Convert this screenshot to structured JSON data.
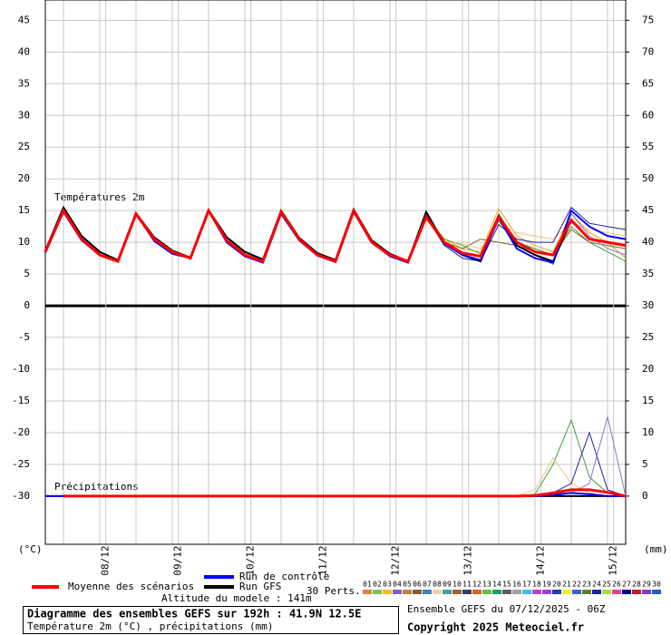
{
  "chart_data": {
    "type": "line",
    "temperature_label": "Températures 2m",
    "precip_label": "Précipitations",
    "y_unit": "(°C)",
    "y2_unit": "(mm)",
    "xlim": [
      0,
      192
    ],
    "xticks": [
      {
        "value": 20,
        "label": "08/12"
      },
      {
        "value": 44,
        "label": "09/12"
      },
      {
        "value": 68,
        "label": "10/12"
      },
      {
        "value": 92,
        "label": "11/12"
      },
      {
        "value": 116,
        "label": "12/12"
      },
      {
        "value": 140,
        "label": "13/12"
      },
      {
        "value": 164,
        "label": "14/12"
      },
      {
        "value": 188,
        "label": "15/12"
      }
    ],
    "ylim": [
      -37.6,
      48.2
    ],
    "yticks": [
      -30,
      -25,
      -20,
      -15,
      -10,
      -5,
      0,
      5,
      10,
      15,
      20,
      25,
      30,
      35,
      40,
      45
    ],
    "y2lim": [
      -7.6,
      78.2
    ],
    "y2ticks": [
      0,
      5,
      10,
      15,
      20,
      25,
      30,
      35,
      40,
      45,
      50,
      55,
      60,
      65,
      70,
      75
    ],
    "grid": true,
    "x": [
      0,
      6,
      12,
      18,
      24,
      30,
      36,
      42,
      48,
      54,
      60,
      66,
      72,
      78,
      84,
      90,
      96,
      102,
      108,
      114,
      120,
      126,
      132,
      138,
      144,
      150,
      156,
      162,
      168,
      174,
      180,
      186,
      192
    ],
    "series": [
      {
        "color": "#f0a020",
        "values": [
          8.5,
          15,
          10.5,
          8,
          7,
          14.5,
          10.5,
          8.5,
          7.5,
          15,
          10.3,
          8,
          7,
          14.8,
          10.5,
          8,
          7,
          15,
          10,
          8,
          7,
          14.2,
          10.5,
          9,
          8.5,
          15.3,
          11,
          9.5,
          8.5,
          14.5,
          11.5,
          10,
          7.5
        ],
        "precip": [
          0,
          0,
          0,
          0,
          0,
          0,
          0,
          0,
          0,
          0,
          0,
          0,
          0,
          0,
          0,
          0,
          0,
          0,
          0,
          0,
          0,
          0,
          0,
          0,
          0,
          0,
          0,
          0,
          0,
          0,
          0,
          0,
          0
        ]
      },
      {
        "color": "#40a040",
        "values": [
          8.5,
          15,
          10.5,
          8,
          7,
          14.5,
          10.5,
          8.5,
          7.5,
          15,
          10.3,
          8,
          7,
          14.8,
          10.5,
          8,
          7,
          15,
          10,
          8,
          7,
          14,
          10.5,
          9.5,
          8.2,
          14.5,
          10,
          9,
          8,
          12.5,
          10,
          8.5,
          7
        ],
        "precip": [
          0,
          0,
          0,
          0,
          0,
          0,
          0,
          0,
          0,
          0,
          0,
          0,
          0,
          0,
          0,
          0,
          0,
          0,
          0,
          0,
          0,
          0,
          0,
          0,
          0,
          0,
          0,
          0.3,
          5,
          12,
          3,
          0.5,
          0
        ]
      },
      {
        "color": "#806030",
        "values": [
          8.5,
          15,
          10.5,
          8,
          7,
          14.5,
          10.5,
          8.5,
          7.5,
          15,
          10.3,
          8,
          7,
          14.8,
          10.5,
          8,
          7,
          15,
          10,
          8,
          7,
          13.8,
          10,
          9,
          10.5,
          10,
          9.5,
          8.5,
          8,
          12,
          10,
          9.5,
          9
        ],
        "precip": [
          0,
          0,
          0,
          0,
          0,
          0,
          0,
          0,
          0,
          0,
          0,
          0,
          0,
          0,
          0,
          0,
          0,
          0,
          0,
          0,
          0,
          0,
          0,
          0,
          0,
          0,
          0,
          0,
          0,
          0,
          0,
          0,
          0
        ]
      },
      {
        "color": "#f0c080",
        "values": [
          8.5,
          15,
          10.5,
          8,
          7,
          14.5,
          10.5,
          8.5,
          7.5,
          15,
          10.3,
          8,
          7,
          14.8,
          10.5,
          8,
          7,
          15,
          10,
          8,
          7,
          14,
          10,
          9.8,
          9,
          13,
          11.5,
          11,
          10.5,
          13,
          12,
          11.5,
          11
        ],
        "precip": [
          0,
          0,
          0,
          0,
          0,
          0,
          0,
          0,
          0,
          0,
          0,
          0,
          0,
          0,
          0,
          0,
          0,
          0,
          0,
          0,
          0,
          0,
          0,
          0,
          0,
          0,
          0,
          1,
          6,
          2,
          0.5,
          0,
          0
        ]
      },
      {
        "color": "#2020a0",
        "values": [
          8.5,
          15,
          10.5,
          8,
          7,
          14.5,
          10.5,
          8.5,
          7.5,
          15,
          10.3,
          8,
          7,
          14.8,
          10.5,
          8,
          7,
          15,
          10,
          8,
          7,
          14,
          9.5,
          7.5,
          7,
          12.8,
          10.5,
          10,
          10,
          15.5,
          13,
          12.5,
          12
        ],
        "precip": [
          0,
          0,
          0,
          0,
          0,
          0,
          0,
          0,
          0,
          0,
          0,
          0,
          0,
          0,
          0,
          0,
          0,
          0,
          0,
          0,
          0,
          0,
          0,
          0,
          0,
          0,
          0,
          0,
          0.5,
          2,
          10,
          1,
          0
        ]
      },
      {
        "color": "#9070d0",
        "values": [
          8.5,
          15,
          10.5,
          8,
          7,
          14.5,
          10.5,
          8.5,
          7.5,
          15,
          10.3,
          8,
          7,
          14.8,
          10.5,
          8,
          7,
          15,
          10,
          8,
          7,
          14.2,
          9.8,
          8,
          7.2,
          13.5,
          9.5,
          8,
          6.5,
          14.5,
          11,
          9,
          8
        ],
        "precip": [
          0,
          0,
          0,
          0,
          0,
          0,
          0,
          0,
          0,
          0,
          0,
          0,
          0,
          0,
          0,
          0,
          0,
          0,
          0,
          0,
          0,
          0,
          0,
          0,
          0,
          0,
          0,
          0,
          0,
          0.5,
          2,
          12.5,
          0
        ]
      },
      {
        "name": "Run GFS",
        "color": "#000000",
        "values": [
          8.7,
          15.5,
          11,
          8.5,
          7.2,
          14.6,
          10.8,
          8.7,
          7.6,
          15.1,
          10.8,
          8.5,
          7.3,
          15,
          10.7,
          8.3,
          7.2,
          15.2,
          10.3,
          8.2,
          7,
          14.8,
          9.8,
          8,
          7,
          14.2,
          9.5,
          8,
          7,
          13.5,
          10.5,
          10,
          9.5
        ],
        "precip": [
          0,
          0,
          0,
          0,
          0,
          0,
          0,
          0,
          0,
          0,
          0,
          0,
          0,
          0,
          0,
          0,
          0,
          0,
          0,
          0,
          0,
          0,
          0,
          0,
          0,
          0,
          0,
          0,
          0,
          0,
          0,
          0,
          0
        ]
      },
      {
        "name": "Run de contrôle",
        "color": "#0000ff",
        "values": [
          8.4,
          14.8,
          10.3,
          8,
          7,
          14.5,
          10.2,
          8.2,
          7.5,
          15,
          10,
          7.8,
          6.8,
          14.5,
          10.3,
          7.9,
          6.9,
          14.8,
          10,
          7.8,
          6.8,
          14.2,
          9.8,
          8,
          7.2,
          13.8,
          9,
          7.5,
          6.8,
          15,
          12.5,
          11,
          10.5
        ],
        "precip": [
          0,
          0,
          0,
          0,
          0,
          0,
          0,
          0,
          0,
          0,
          0,
          0,
          0,
          0,
          0,
          0,
          0,
          0,
          0,
          0,
          0,
          0,
          0,
          0,
          0,
          0,
          0,
          0,
          0.2,
          0.5,
          0.3,
          0,
          0
        ]
      },
      {
        "name": "Moyenne des scénarios",
        "color": "#ff0000",
        "values": [
          8.5,
          15,
          10.5,
          8,
          7,
          14.5,
          10.5,
          8.5,
          7.5,
          15,
          10.3,
          8,
          7,
          14.8,
          10.5,
          8,
          7,
          15,
          10,
          8,
          7,
          14,
          10,
          8.3,
          7.8,
          14,
          10,
          8.5,
          8,
          13.5,
          10.5,
          10,
          9.5
        ],
        "precip": [
          null,
          0,
          0,
          0,
          0,
          0,
          0,
          0,
          0,
          0,
          0,
          0,
          0,
          0,
          0,
          0,
          0,
          0,
          0,
          0,
          0,
          0,
          0,
          0,
          0,
          0,
          0,
          0.1,
          0.5,
          1,
          1,
          0.6,
          0
        ]
      }
    ],
    "perts_label": "30 Perts.",
    "members": [
      {
        "name": "01",
        "color": "#e08040"
      },
      {
        "name": "02",
        "color": "#80c060"
      },
      {
        "name": "03",
        "color": "#f0c020"
      },
      {
        "name": "04",
        "color": "#8060c0"
      },
      {
        "name": "05",
        "color": "#c08040"
      },
      {
        "name": "06",
        "color": "#806030"
      },
      {
        "name": "07",
        "color": "#4080c0"
      },
      {
        "name": "08",
        "color": "#f0d0a0"
      },
      {
        "name": "09",
        "color": "#40a0a0"
      },
      {
        "name": "10",
        "color": "#a06030"
      },
      {
        "name": "11",
        "color": "#304060"
      },
      {
        "name": "12",
        "color": "#e06020"
      },
      {
        "name": "13",
        "color": "#60c040"
      },
      {
        "name": "14",
        "color": "#20a060"
      },
      {
        "name": "15",
        "color": "#606060"
      },
      {
        "name": "16",
        "color": "#a0a0a0"
      },
      {
        "name": "17",
        "color": "#40c0e0"
      },
      {
        "name": "18",
        "color": "#c040c0"
      },
      {
        "name": "19",
        "color": "#a040e0"
      },
      {
        "name": "20",
        "color": "#2040a0"
      },
      {
        "name": "21",
        "color": "#f0f020"
      },
      {
        "name": "22",
        "color": "#4060e0"
      },
      {
        "name": "23",
        "color": "#608030"
      },
      {
        "name": "24",
        "color": "#2020a0"
      },
      {
        "name": "25",
        "color": "#a0e040"
      },
      {
        "name": "26",
        "color": "#e040a0"
      },
      {
        "name": "27",
        "color": "#000080"
      },
      {
        "name": "28",
        "color": "#c02020"
      },
      {
        "name": "29",
        "color": "#8040c0"
      },
      {
        "name": "30",
        "color": "#2060c0"
      }
    ],
    "altitude": "Altitude du modele : 141m",
    "title": "Diagramme des ensembles GEFS sur 192h : 41.9N 12.5E",
    "subtitle": "Température 2m (°C) , précipitations (mm)",
    "run_info": "Ensemble GEFS du 07/12/2025 - 06Z",
    "copyright": "Copyright 2025 Meteociel.fr"
  }
}
